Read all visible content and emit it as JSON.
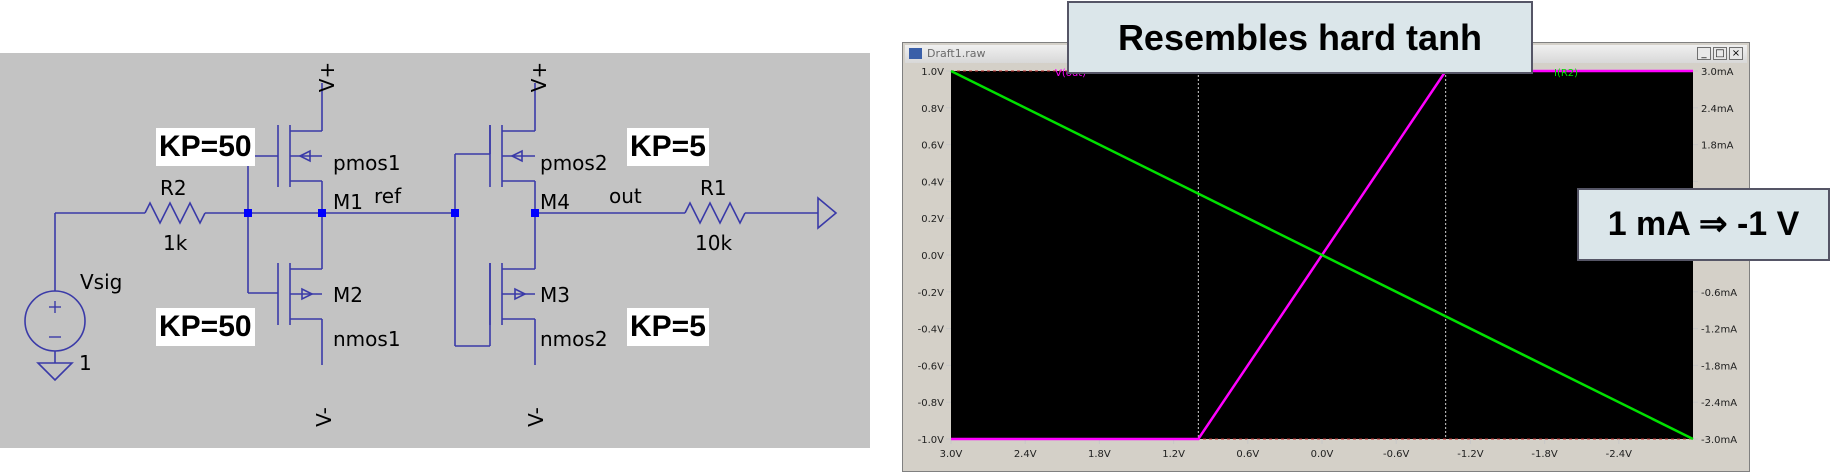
{
  "schematic": {
    "labels": {
      "vplus_left": "V+",
      "vplus_right": "V+",
      "vminus_left": "V-",
      "vminus_right": "V-",
      "pmos1": "pmos1",
      "m1": "M1",
      "m2": "M2",
      "nmos1": "nmos1",
      "pmos2": "pmos2",
      "m4": "M4",
      "m3": "M3",
      "nmos2": "nmos2",
      "r2": "R2",
      "r2_value": "1k",
      "r1": "R1",
      "r1_value": "10k",
      "ref": "ref",
      "out": "out",
      "vsig": "Vsig",
      "gnd_value": "1"
    },
    "annotations": {
      "kp_pmos1": "KP=50",
      "kp_nmos1": "KP=50",
      "kp_pmos2": "KP=5",
      "kp_nmos2": "KP=5"
    },
    "wire_color": "#3a3aa8",
    "junction_color": "#0000ff"
  },
  "plot_window": {
    "title": "Draft1.raw",
    "trace_labels": {
      "left": "V(out)",
      "right": "I(R2)"
    },
    "colors": {
      "background": "#000000",
      "voltage_trace": "#ff00ff",
      "current_trace": "#00e000",
      "axis_text": "#c8c8c8"
    }
  },
  "chart_data": {
    "type": "line",
    "xlim": [
      3.0,
      -3.0
    ],
    "ylim_left": [
      -1.0,
      1.0
    ],
    "ylim_right": [
      -3.0,
      3.0
    ],
    "x_ticks": [
      "3.0V",
      "2.4V",
      "1.8V",
      "1.2V",
      "0.6V",
      "0.0V",
      "-0.6V",
      "-1.2V",
      "-1.8V",
      "-2.4V"
    ],
    "x_tick_values": [
      3.0,
      2.4,
      1.8,
      1.2,
      0.6,
      0.0,
      -0.6,
      -1.2,
      -1.8,
      -2.4
    ],
    "y_ticks_left": [
      "1.0V",
      "0.8V",
      "0.6V",
      "0.4V",
      "0.2V",
      "0.0V",
      "-0.2V",
      "-0.4V",
      "-0.6V",
      "-0.8V",
      "-1.0V"
    ],
    "y_tick_values_left": [
      1.0,
      0.8,
      0.6,
      0.4,
      0.2,
      0.0,
      -0.2,
      -0.4,
      -0.6,
      -0.8,
      -1.0
    ],
    "y_ticks_right": [
      "3.0mA",
      "2.4mA",
      "1.8mA",
      "",
      "",
      "0.0mA",
      "-0.6mA",
      "-1.2mA",
      "-1.8mA",
      "-2.4mA",
      "-3.0mA"
    ],
    "y_tick_values_right": [
      3.0,
      2.4,
      1.8,
      1.2,
      0.6,
      0.0,
      -0.6,
      -1.2,
      -1.8,
      -2.4,
      -3.0
    ],
    "cursor_x": [
      1.0,
      -1.0
    ],
    "series": [
      {
        "name": "V(out)",
        "axis": "left",
        "x": [
          3.0,
          1.0,
          -1.0,
          -3.0
        ],
        "y": [
          -1.0,
          -1.0,
          1.0,
          1.0
        ]
      },
      {
        "name": "I(R2)",
        "axis": "right",
        "x": [
          3.0,
          -3.0
        ],
        "y": [
          3.0,
          -3.0
        ]
      }
    ]
  },
  "callouts": {
    "top": "Resembles hard tanh",
    "right": "1 mA ⇒ -1 V"
  }
}
